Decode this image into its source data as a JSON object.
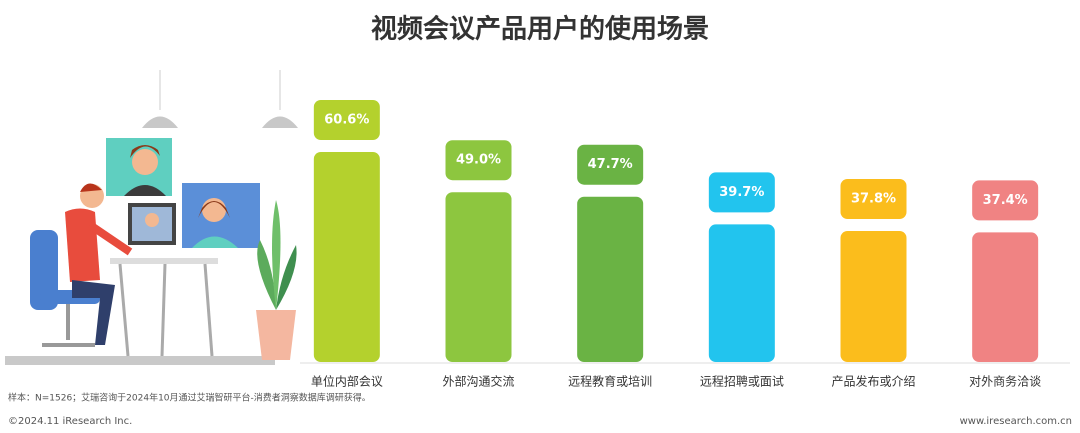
{
  "chart_data": {
    "type": "bar",
    "title": "视频会议产品用户的使用场景",
    "categories": [
      "单位内部会议",
      "外部沟通交流",
      "远程教育或培训",
      "远程招聘或面试",
      "产品发布或介绍",
      "对外商务洽谈"
    ],
    "values": [
      60.6,
      49.0,
      47.7,
      39.7,
      37.8,
      37.4
    ],
    "value_labels": [
      "60.6%",
      "49.0%",
      "47.7%",
      "39.7%",
      "37.8%",
      "37.4%"
    ],
    "colors": [
      "#b4d12d",
      "#8dc63f",
      "#6ab344",
      "#22c4ee",
      "#fbbd1c",
      "#f08383"
    ],
    "note": "样本：N=1526；艾瑞咨询于2024年10月通过艾瑞智研平台-消费者洞察数据库调研获得。",
    "copyright": "©2024.11 iResearch Inc.",
    "website": "www.iresearch.com.cn"
  }
}
